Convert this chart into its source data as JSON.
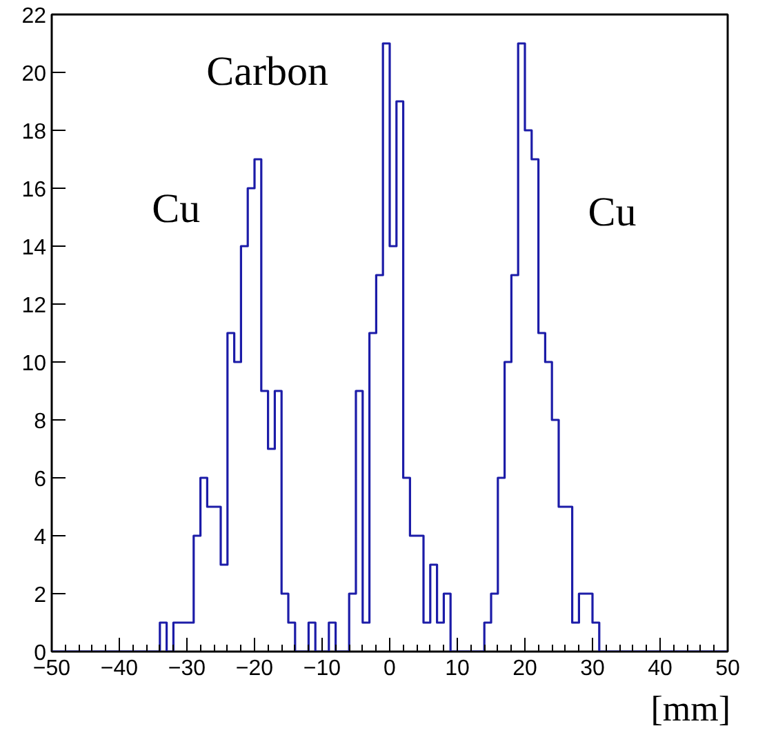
{
  "chart_data": {
    "type": "histogram",
    "xlabel": "[mm]",
    "bins": [
      -50,
      -49,
      -48,
      -47,
      -46,
      -45,
      -44,
      -43,
      -42,
      -41,
      -40,
      -39,
      -38,
      -37,
      -36,
      -35,
      -34,
      -33,
      -32,
      -31,
      -30,
      -29,
      -28,
      -27,
      -26,
      -25,
      -24,
      -23,
      -22,
      -21,
      -20,
      -19,
      -18,
      -17,
      -16,
      -15,
      -14,
      -13,
      -12,
      -11,
      -10,
      -9,
      -8,
      -7,
      -6,
      -5,
      -4,
      -3,
      -2,
      -1,
      0,
      1,
      2,
      3,
      4,
      5,
      6,
      7,
      8,
      9,
      10,
      11,
      12,
      13,
      14,
      15,
      16,
      17,
      18,
      19,
      20,
      21,
      22,
      23,
      24,
      25,
      26,
      27,
      28,
      29,
      30,
      31,
      32,
      33,
      34,
      35,
      36,
      37,
      38,
      39,
      40,
      41,
      42,
      43,
      44,
      45,
      46,
      47,
      48,
      49,
      50
    ],
    "values": [
      0,
      0,
      0,
      0,
      0,
      0,
      0,
      0,
      0,
      0,
      0,
      0,
      0,
      0,
      0,
      0,
      1,
      0,
      1,
      1,
      1,
      4,
      6,
      5,
      5,
      3,
      11,
      10,
      14,
      16,
      17,
      9,
      7,
      9,
      2,
      1,
      0,
      0,
      1,
      0,
      0,
      1,
      0,
      0,
      2,
      9,
      1,
      11,
      13,
      21,
      14,
      19,
      6,
      4,
      4,
      1,
      3,
      1,
      2,
      0,
      0,
      0,
      0,
      0,
      1,
      2,
      6,
      10,
      13,
      21,
      18,
      17,
      11,
      10,
      8,
      5,
      5,
      1,
      2,
      2,
      1,
      0,
      0,
      0,
      0,
      0,
      0,
      0,
      0,
      0,
      0,
      0,
      0,
      0,
      0,
      0,
      0,
      0,
      0,
      0
    ],
    "color": "#1c1ca8",
    "xlim": [
      -50,
      50
    ],
    "ylim": [
      0,
      22
    ],
    "xticks": [
      -50,
      -40,
      -30,
      -20,
      -10,
      0,
      10,
      20,
      30,
      40,
      50
    ],
    "yticks": [
      0,
      2,
      4,
      6,
      8,
      10,
      12,
      14,
      16,
      18,
      20,
      22
    ],
    "grid": false,
    "annotations": [
      "Cu",
      "Carbon",
      "Cu"
    ]
  }
}
